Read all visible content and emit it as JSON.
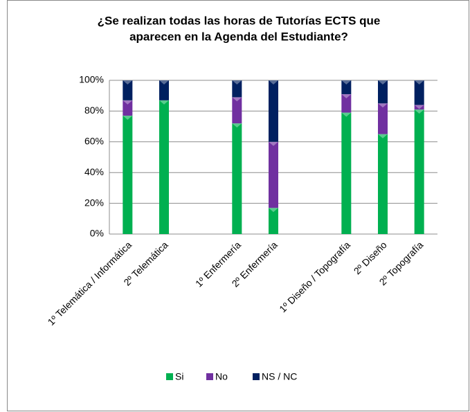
{
  "chart_data": {
    "type": "stacked_bar",
    "title": [
      "¿Se realizan todas las horas de Tutorías ECTS que",
      "aparecen en la Agenda del Estudiante?"
    ],
    "categories": [
      "1º Telemática / Informática",
      "2º Telemática",
      null,
      "1º Enfermería",
      "2º Enfermería",
      null,
      "1º Diseño / Topografía",
      "2º Diseño",
      "2º Topografía"
    ],
    "series": [
      {
        "name": "Si",
        "color": "#00b050",
        "values": [
          77,
          87,
          null,
          72,
          17,
          null,
          79,
          65,
          81
        ]
      },
      {
        "name": "No",
        "color": "#7030a0",
        "values": [
          10,
          0,
          null,
          17,
          43,
          null,
          12,
          20,
          3
        ]
      },
      {
        "name": "NS / NC",
        "color": "#002060",
        "values": [
          13,
          13,
          null,
          11,
          40,
          null,
          9,
          15,
          16
        ]
      }
    ],
    "ylim": [
      0,
      100
    ],
    "yticks": [
      {
        "value": 0,
        "label": "0%"
      },
      {
        "value": 20,
        "label": "20%"
      },
      {
        "value": 40,
        "label": "40%"
      },
      {
        "value": 60,
        "label": "60%"
      },
      {
        "value": 80,
        "label": "80%"
      },
      {
        "value": 100,
        "label": "100%"
      }
    ],
    "grid": true,
    "legend": "bottom"
  }
}
